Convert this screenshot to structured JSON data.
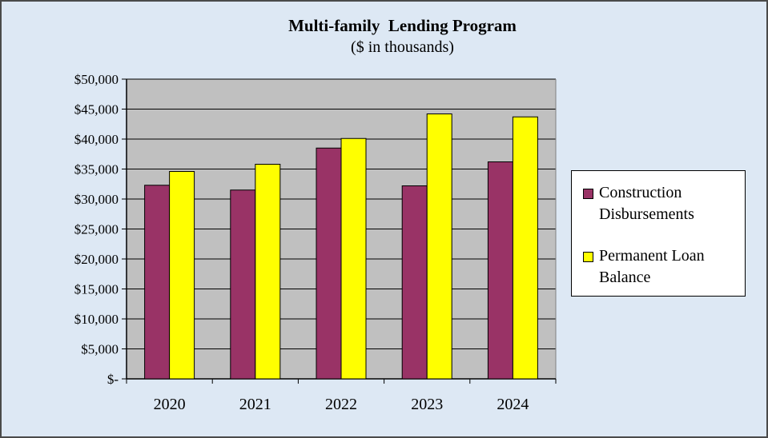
{
  "chart_data": {
    "type": "bar",
    "title": "Multi-family  Lending Program",
    "subtitle": "($ in thousands)",
    "categories": [
      "2020",
      "2021",
      "2022",
      "2023",
      "2024"
    ],
    "series": [
      {
        "name": "Construction Disbursements",
        "values": [
          32300,
          31500,
          38500,
          32200,
          36200
        ],
        "color": "#993366"
      },
      {
        "name": "Permanent Loan Balance",
        "values": [
          34600,
          35800,
          40100,
          44200,
          43700
        ],
        "color": "#ffff00"
      }
    ],
    "ylim": [
      0,
      50000
    ],
    "yticks": [
      0,
      5000,
      10000,
      15000,
      20000,
      25000,
      30000,
      35000,
      40000,
      45000,
      50000
    ],
    "ytick_labels": [
      "$-",
      "$5,000",
      "$10,000",
      "$15,000",
      "$20,000",
      "$25,000",
      "$30,000",
      "$35,000",
      "$40,000",
      "$45,000",
      "$50,000"
    ],
    "grid": true,
    "legend_position": "right",
    "colors": {
      "background": "#dde8f4",
      "plot_area": "#c0c0c0"
    }
  }
}
